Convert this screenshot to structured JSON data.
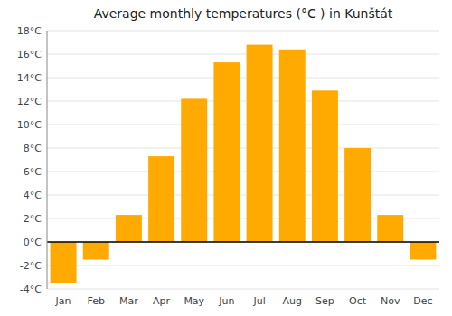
{
  "chart_data": {
    "type": "bar",
    "title": "Average monthly temperatures (°C ) in Kunštát",
    "categories": [
      "Jan",
      "Feb",
      "Mar",
      "Apr",
      "May",
      "Jun",
      "Jul",
      "Aug",
      "Sep",
      "Oct",
      "Nov",
      "Dec"
    ],
    "values": [
      -3.5,
      -1.5,
      2.3,
      7.3,
      12.2,
      15.3,
      16.8,
      16.4,
      12.9,
      8.0,
      2.3,
      -1.5
    ],
    "color": "#FFAA00",
    "ylim": [
      -4,
      18
    ],
    "yticks": [
      {
        "value": -4,
        "label": "-4°C"
      },
      {
        "value": -2,
        "label": "-2°C"
      },
      {
        "value": 0,
        "label": "0°C"
      },
      {
        "value": 2,
        "label": "2°C"
      },
      {
        "value": 4,
        "label": "4°C"
      },
      {
        "value": 6,
        "label": "6°C"
      },
      {
        "value": 8,
        "label": "8°C"
      },
      {
        "value": 10,
        "label": "10°C"
      },
      {
        "value": 12,
        "label": "12°C"
      },
      {
        "value": 14,
        "label": "14°C"
      },
      {
        "value": 16,
        "label": "16°C"
      },
      {
        "value": 18,
        "label": "18°C"
      }
    ],
    "grid": true
  }
}
